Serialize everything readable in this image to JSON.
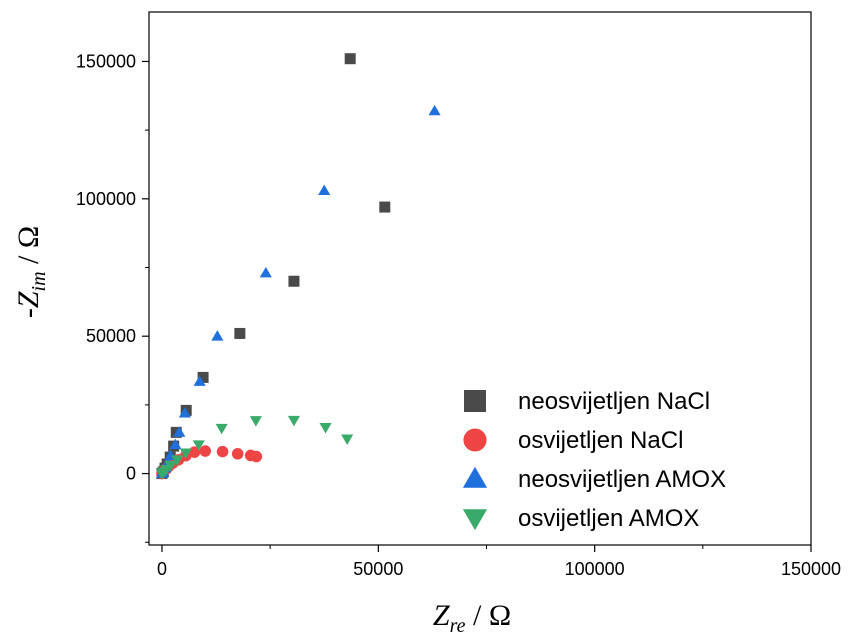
{
  "chart_data": {
    "type": "scatter",
    "title": "",
    "xlabel": {
      "main": "Z",
      "sub": "re",
      "unit": " / Ω"
    },
    "ylabel": {
      "main": "-Z",
      "sub": "im",
      "unit": " / Ω"
    },
    "xlim": [
      -3000,
      150000
    ],
    "ylim": [
      -26000,
      168000
    ],
    "x_ticks": [
      0,
      50000,
      100000,
      150000
    ],
    "x_tick_labels": [
      "0",
      "50000",
      "100000",
      "150000"
    ],
    "y_ticks": [
      0,
      50000,
      100000,
      150000
    ],
    "y_tick_labels": [
      "0",
      "50000",
      "100000",
      "150000"
    ],
    "legend_position": "bottom-right",
    "grid": false,
    "series": [
      {
        "name": "neosvijetljen NaCl",
        "marker": "square",
        "color": "#4a4a4a",
        "points": [
          [
            0,
            0
          ],
          [
            300,
            600
          ],
          [
            700,
            2000
          ],
          [
            1200,
            3500
          ],
          [
            1900,
            6000
          ],
          [
            2700,
            10000
          ],
          [
            3300,
            15000
          ],
          [
            5600,
            23000
          ],
          [
            9500,
            35000
          ],
          [
            18000,
            51000
          ],
          [
            30500,
            70000
          ],
          [
            51500,
            97000
          ],
          [
            43500,
            151000
          ]
        ]
      },
      {
        "name": "osvijetljen NaCl",
        "marker": "circle",
        "color": "#ef4444",
        "points": [
          [
            0,
            0
          ],
          [
            300,
            500
          ],
          [
            800,
            1500
          ],
          [
            1500,
            2500
          ],
          [
            2500,
            3800
          ],
          [
            3800,
            5000
          ],
          [
            5500,
            6500
          ],
          [
            7500,
            7800
          ],
          [
            10000,
            8200
          ],
          [
            14000,
            8000
          ],
          [
            17500,
            7200
          ],
          [
            20500,
            6600
          ],
          [
            21800,
            6200
          ]
        ]
      },
      {
        "name": "neosvijetljen AMOX",
        "marker": "triangle-up",
        "color": "#1f6fdc",
        "points": [
          [
            0,
            0
          ],
          [
            300,
            600
          ],
          [
            800,
            2000
          ],
          [
            1300,
            3800
          ],
          [
            2000,
            6500
          ],
          [
            3100,
            10500
          ],
          [
            4000,
            15000
          ],
          [
            5300,
            22000
          ],
          [
            8700,
            33500
          ],
          [
            12800,
            50000
          ],
          [
            24000,
            73000
          ],
          [
            37500,
            103000
          ],
          [
            63000,
            132000
          ]
        ]
      },
      {
        "name": "osvijetljen AMOX",
        "marker": "triangle-down",
        "color": "#3aaa6a",
        "points": [
          [
            0,
            0
          ],
          [
            400,
            600
          ],
          [
            1000,
            1500
          ],
          [
            2000,
            3000
          ],
          [
            3500,
            5000
          ],
          [
            5500,
            7500
          ],
          [
            8500,
            10500
          ],
          [
            13800,
            16500
          ],
          [
            21700,
            19300
          ],
          [
            30500,
            19400
          ],
          [
            37800,
            16800
          ],
          [
            42800,
            12600
          ]
        ]
      }
    ]
  }
}
